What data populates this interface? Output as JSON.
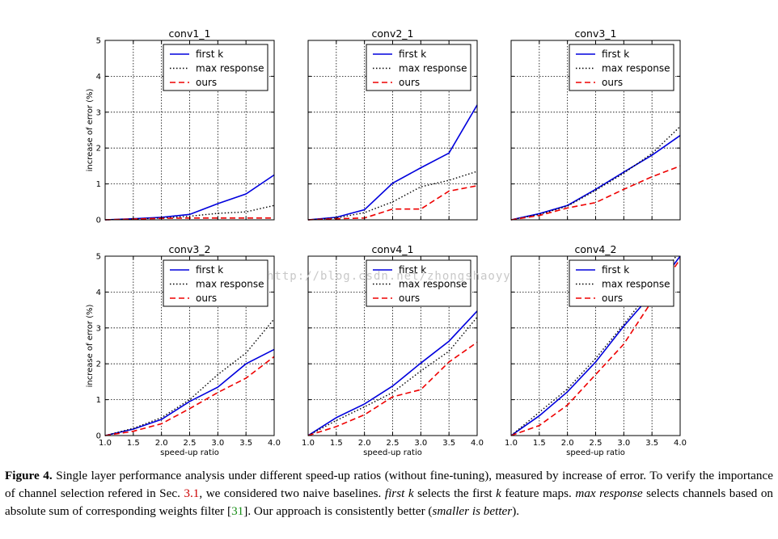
{
  "figure": {
    "caption_parts": {
      "label": "Figure 4.",
      "p1": " Single layer performance analysis under different speed-up ratios (without fine-tuning), measured by increase of error. To verify the importance of channel selection refered in Sec. ",
      "sec_ref": "3.1",
      "p2": ", we considered two naive baselines. ",
      "first_k": "first k",
      "p3": " selects the first ",
      "k": "k",
      "p4": " feature maps. ",
      "max_response": "max response",
      "p5": " selects channels based on absolute sum of corresponding weights filter [",
      "cite": "31",
      "p6": "]. Our approach is consistently better (",
      "smaller": "smaller is better",
      "p7": ")."
    },
    "watermark": "http://blog.csdn.net/zhongshaoyy"
  },
  "colors": {
    "first_k": "#0000dd",
    "max_response": "#000000",
    "ours": "#ee0000"
  },
  "chart_data": [
    {
      "type": "line",
      "title": "conv1_1",
      "xlabel": "",
      "ylabel": "increase of error (%)",
      "x": [
        1.0,
        1.5,
        2.0,
        2.5,
        3.0,
        3.5,
        4.0
      ],
      "xlim": [
        1.0,
        4.0
      ],
      "ylim": [
        0,
        5
      ],
      "xticks": [],
      "yticks": [
        "0",
        "1",
        "2",
        "3",
        "4",
        "5"
      ],
      "grid": true,
      "legend": "top-right",
      "series": [
        {
          "name": "first k",
          "style": "solid",
          "values": [
            0.0,
            0.03,
            0.07,
            0.15,
            0.45,
            0.72,
            1.25
          ]
        },
        {
          "name": "max response",
          "style": "dotted",
          "values": [
            0.0,
            0.02,
            0.05,
            0.1,
            0.18,
            0.22,
            0.4
          ]
        },
        {
          "name": "ours",
          "style": "dashed",
          "values": [
            0.0,
            0.02,
            0.04,
            0.05,
            0.05,
            0.05,
            0.05
          ]
        }
      ]
    },
    {
      "type": "line",
      "title": "conv2_1",
      "xlabel": "",
      "ylabel": "",
      "x": [
        1.0,
        1.5,
        2.0,
        2.5,
        3.0,
        3.5,
        4.0
      ],
      "xlim": [
        1.0,
        4.0
      ],
      "ylim": [
        0,
        5
      ],
      "xticks": [],
      "yticks": [],
      "grid": true,
      "legend": "top-right",
      "series": [
        {
          "name": "first k",
          "style": "solid",
          "values": [
            0.0,
            0.07,
            0.28,
            1.02,
            1.45,
            1.86,
            3.2
          ]
        },
        {
          "name": "max response",
          "style": "dotted",
          "values": [
            0.0,
            0.05,
            0.2,
            0.5,
            0.92,
            1.1,
            1.35
          ]
        },
        {
          "name": "ours",
          "style": "dashed",
          "values": [
            0.0,
            0.03,
            0.05,
            0.3,
            0.3,
            0.8,
            0.95
          ]
        }
      ]
    },
    {
      "type": "line",
      "title": "conv3_1",
      "xlabel": "",
      "ylabel": "",
      "x": [
        1.0,
        1.5,
        2.0,
        2.5,
        3.0,
        3.5,
        4.0
      ],
      "xlim": [
        1.0,
        4.0
      ],
      "ylim": [
        0,
        5
      ],
      "xticks": [],
      "yticks": [],
      "grid": true,
      "legend": "top-right",
      "series": [
        {
          "name": "first k",
          "style": "solid",
          "values": [
            0.0,
            0.17,
            0.4,
            0.85,
            1.33,
            1.8,
            2.35
          ]
        },
        {
          "name": "max response",
          "style": "dotted",
          "values": [
            0.0,
            0.15,
            0.38,
            0.82,
            1.3,
            1.85,
            2.6
          ]
        },
        {
          "name": "ours",
          "style": "dashed",
          "values": [
            0.0,
            0.12,
            0.33,
            0.48,
            0.85,
            1.2,
            1.5
          ]
        }
      ]
    },
    {
      "type": "line",
      "title": "conv3_2",
      "xlabel": "speed-up ratio",
      "ylabel": "increase of error (%)",
      "x": [
        1.0,
        1.5,
        2.0,
        2.5,
        3.0,
        3.5,
        4.0
      ],
      "xlim": [
        1.0,
        4.0
      ],
      "ylim": [
        0,
        5
      ],
      "xticks": [
        "1.0",
        "1.5",
        "2.0",
        "2.5",
        "3.0",
        "3.5",
        "4.0"
      ],
      "yticks": [
        "0",
        "1",
        "2",
        "3",
        "4",
        "5"
      ],
      "grid": true,
      "legend": "top-right",
      "series": [
        {
          "name": "first k",
          "style": "solid",
          "values": [
            0.0,
            0.18,
            0.45,
            0.95,
            1.35,
            2.0,
            2.4
          ]
        },
        {
          "name": "max response",
          "style": "dotted",
          "values": [
            0.0,
            0.2,
            0.5,
            1.0,
            1.7,
            2.3,
            3.25
          ]
        },
        {
          "name": "ours",
          "style": "dashed",
          "values": [
            0.0,
            0.12,
            0.33,
            0.75,
            1.2,
            1.6,
            2.2
          ]
        }
      ]
    },
    {
      "type": "line",
      "title": "conv4_1",
      "xlabel": "speed-up ratio",
      "ylabel": "",
      "x": [
        1.0,
        1.5,
        2.0,
        2.5,
        3.0,
        3.5,
        4.0
      ],
      "xlim": [
        1.0,
        4.0
      ],
      "ylim": [
        0,
        5
      ],
      "xticks": [
        "1.0",
        "1.5",
        "2.0",
        "2.5",
        "3.0",
        "3.5",
        "4.0"
      ],
      "yticks": [],
      "grid": true,
      "legend": "top-right",
      "series": [
        {
          "name": "first k",
          "style": "solid",
          "values": [
            0.0,
            0.5,
            0.88,
            1.38,
            2.02,
            2.63,
            3.47
          ]
        },
        {
          "name": "max response",
          "style": "dotted",
          "values": [
            0.0,
            0.42,
            0.8,
            1.2,
            1.8,
            2.35,
            3.3
          ]
        },
        {
          "name": "ours",
          "style": "dashed",
          "values": [
            0.0,
            0.25,
            0.58,
            1.08,
            1.28,
            2.05,
            2.6
          ]
        }
      ]
    },
    {
      "type": "line",
      "title": "conv4_2",
      "xlabel": "speed-up ratio",
      "ylabel": "",
      "x": [
        1.0,
        1.5,
        2.0,
        2.5,
        3.0,
        3.5,
        4.0
      ],
      "xlim": [
        1.0,
        4.0
      ],
      "ylim": [
        0,
        5
      ],
      "xticks": [
        "1.0",
        "1.5",
        "2.0",
        "2.5",
        "3.0",
        "3.5",
        "4.0"
      ],
      "yticks": [],
      "grid": true,
      "legend": "top-right",
      "series": [
        {
          "name": "first k",
          "style": "solid",
          "values": [
            0.0,
            0.55,
            1.22,
            2.05,
            3.05,
            3.95,
            5.0
          ]
        },
        {
          "name": "max response",
          "style": "dotted",
          "values": [
            0.0,
            0.65,
            1.3,
            2.15,
            3.1,
            4.1,
            5.2
          ]
        },
        {
          "name": "ours",
          "style": "dashed",
          "values": [
            0.0,
            0.28,
            0.85,
            1.7,
            2.55,
            3.75,
            4.92
          ]
        }
      ]
    }
  ]
}
